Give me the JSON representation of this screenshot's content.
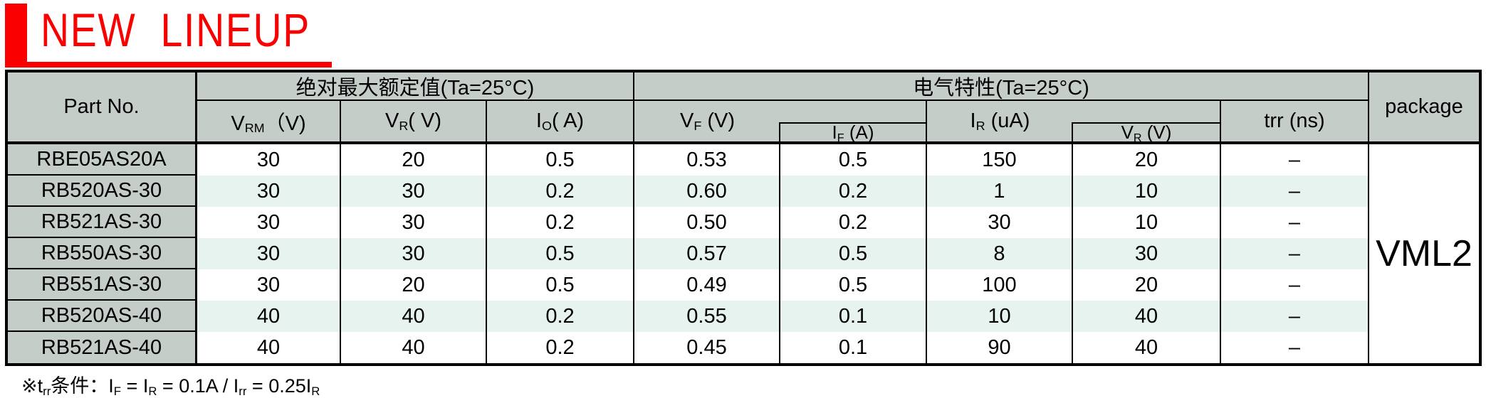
{
  "title": "NEW  LINEUP",
  "colors": {
    "accent_red": "#fa0000",
    "header_gray": "#c5cdc9",
    "stripe_teal": "#e6f3ef",
    "border_black": "#000000"
  },
  "table": {
    "part_col_header": "Part No.",
    "groups": {
      "abs_max": "绝对最大额定值(Ta=25°C)",
      "elec": "电气特性(Ta=25°C)",
      "package": "package"
    },
    "columns": {
      "vrm": {
        "base": "V",
        "sub": "RM",
        "unit": "（V)"
      },
      "vr": {
        "base": "V",
        "sub": "R",
        "unit": "( V)"
      },
      "io": {
        "base": "I",
        "sub": "O",
        "unit": "( A)"
      },
      "vf": {
        "base": "V",
        "sub": "F",
        "unit": " (V)"
      },
      "if": {
        "base": "I",
        "sub": "F",
        "unit": " (A)"
      },
      "ir": {
        "base": "I",
        "sub": "R",
        "unit": " (uA)"
      },
      "vr2": {
        "base": "V",
        "sub": "R",
        "unit": " (V)"
      },
      "trr": {
        "label": "trr (ns)"
      }
    },
    "package_value": "VML2",
    "rows": [
      {
        "part": "RBE05AS20A",
        "vrm": "30",
        "vr": "20",
        "io": "0.5",
        "vf": "0.53",
        "if": "0.5",
        "ir": "150",
        "vr2": "20",
        "trr": "–"
      },
      {
        "part": "RB520AS-30",
        "vrm": "30",
        "vr": "30",
        "io": "0.2",
        "vf": "0.60",
        "if": "0.2",
        "ir": "1",
        "vr2": "10",
        "trr": "–"
      },
      {
        "part": "RB521AS-30",
        "vrm": "30",
        "vr": "30",
        "io": "0.2",
        "vf": "0.50",
        "if": "0.2",
        "ir": "30",
        "vr2": "10",
        "trr": "–"
      },
      {
        "part": "RB550AS-30",
        "vrm": "30",
        "vr": "30",
        "io": "0.5",
        "vf": "0.57",
        "if": "0.5",
        "ir": "8",
        "vr2": "30",
        "trr": "–"
      },
      {
        "part": "RB551AS-30",
        "vrm": "30",
        "vr": "20",
        "io": "0.5",
        "vf": "0.49",
        "if": "0.5",
        "ir": "100",
        "vr2": "20",
        "trr": "–"
      },
      {
        "part": "RB520AS-40",
        "vrm": "40",
        "vr": "40",
        "io": "0.2",
        "vf": "0.55",
        "if": "0.1",
        "ir": "10",
        "vr2": "40",
        "trr": "–"
      },
      {
        "part": "RB521AS-40",
        "vrm": "40",
        "vr": "40",
        "io": "0.2",
        "vf": "0.45",
        "if": "0.1",
        "ir": "90",
        "vr2": "40",
        "trr": "–"
      }
    ]
  },
  "footnote": {
    "prefix_t": "※t",
    "prefix_sub": "rr",
    "prefix_rest": "条件：",
    "i1": "I",
    "s1": "F",
    "m1": " = ",
    "i2": "I",
    "s2": "R",
    "m2": " = 0.1A / ",
    "i3": "I",
    "s3": "rr",
    "m3": " = 0.25",
    "i4": "I",
    "s4": "R"
  }
}
